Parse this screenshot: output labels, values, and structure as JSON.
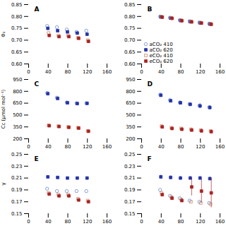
{
  "chart_data": [
    {
      "type": "scatter",
      "annotations": [
        "A"
      ],
      "ylabel": "Φ₂",
      "x": [
        40,
        60,
        80,
        100,
        120
      ],
      "series": [
        {
          "name": "aCO₂ 410",
          "color": "#6688cc",
          "marker": "circle_open",
          "values": [
            0.76,
            0.755,
            0.745,
            0.735,
            0.74
          ]
        },
        {
          "name": "aCO₂ 620",
          "color": "#2233aa",
          "marker": "square",
          "values": [
            0.75,
            0.74,
            0.735,
            0.73,
            0.725
          ]
        },
        {
          "name": "eCO₂ 410",
          "color": "#cc8866",
          "marker": "square_open",
          "values": [
            0.73,
            0.72,
            0.72,
            0.71,
            0.7
          ]
        },
        {
          "name": "eCO₂ 620",
          "color": "#aa2222",
          "marker": "square",
          "values": [
            0.72,
            0.715,
            0.715,
            0.708,
            0.695
          ]
        }
      ],
      "xlim": [
        0,
        160
      ],
      "xticks": [
        0,
        40,
        80,
        120,
        160
      ],
      "ylim": [
        0.6,
        0.85
      ],
      "yticks": [
        {
          "value": 0.6,
          "label": "0.60"
        },
        {
          "value": 0.65,
          "label": "0.65"
        },
        {
          "value": 0.7,
          "label": "0.70"
        },
        {
          "value": 0.75,
          "label": "0.75"
        },
        {
          "value": 0.8,
          "label": "0.80"
        },
        {
          "value": 0.85,
          "label": "0.85"
        }
      ],
      "grid": false
    },
    {
      "type": "scatter",
      "annotations": [
        "B"
      ],
      "x": [
        40,
        60,
        80,
        100,
        120,
        140
      ],
      "series": [
        {
          "name": "aCO₂ 410",
          "color": "#6688cc",
          "marker": "circle_open",
          "values": [
            0.8,
            0.795,
            0.785,
            0.78,
            0.775,
            0.77
          ]
        },
        {
          "name": "aCO₂ 620",
          "color": "#2233aa",
          "marker": "square",
          "values": [
            0.798,
            0.793,
            0.783,
            0.778,
            0.773,
            0.768
          ]
        },
        {
          "name": "eCO₂ 410",
          "color": "#cc8866",
          "marker": "square_open",
          "values": [
            0.799,
            0.794,
            0.784,
            0.779,
            0.774,
            0.769
          ]
        },
        {
          "name": "eCO₂ 620",
          "color": "#aa2222",
          "marker": "square",
          "values": [
            0.797,
            0.792,
            0.782,
            0.777,
            0.772,
            0.767
          ]
        }
      ],
      "xlim": [
        0,
        160
      ],
      "xticks": [
        0,
        40,
        80,
        120,
        160
      ],
      "ylim": [
        0.6,
        0.85
      ],
      "yticks": [
        {
          "value": 0.6,
          "label": "0.60"
        },
        {
          "value": 0.65,
          "label": "0.65"
        },
        {
          "value": 0.7,
          "label": "0.70"
        },
        {
          "value": 0.75,
          "label": "0.75"
        },
        {
          "value": 0.8,
          "label": "0.80"
        },
        {
          "value": 0.85,
          "label": "0.85"
        }
      ],
      "grid": false,
      "legend": "lower left"
    },
    {
      "type": "scatter",
      "annotations": [
        "C"
      ],
      "ylabel": "Cc (μmol mol⁻¹)",
      "x": [
        40,
        60,
        80,
        100,
        120
      ],
      "series": [
        {
          "name": "aCO₂ 410",
          "color": "#6688cc",
          "marker": "circle_open",
          "values": [
            780,
            720,
            660,
            650,
            650
          ]
        },
        {
          "name": "aCO₂ 620",
          "color": "#2233aa",
          "marker": "square",
          "values": [
            770,
            710,
            655,
            645,
            648
          ]
        },
        {
          "name": "eCO₂ 410",
          "color": "#cc8866",
          "marker": "square_open",
          "values": [
            370,
            360,
            350,
            340,
            300
          ]
        },
        {
          "name": "eCO₂ 620",
          "color": "#aa2222",
          "marker": "square",
          "values": [
            365,
            355,
            345,
            335,
            295
          ]
        }
      ],
      "xlim": [
        0,
        160
      ],
      "xticks": [
        0,
        40,
        80,
        120,
        160
      ],
      "ylim": [
        200,
        950
      ],
      "yticks": [
        200,
        350,
        500,
        650,
        800,
        950
      ],
      "grid": false
    },
    {
      "type": "scatter",
      "annotations": [
        "D"
      ],
      "x": [
        40,
        60,
        80,
        100,
        120,
        140
      ],
      "series": [
        {
          "name": "aCO₂ 410",
          "color": "#6688cc",
          "marker": "circle_open",
          "values": [
            760,
            690,
            660,
            640,
            620,
            600
          ]
        },
        {
          "name": "aCO₂ 620",
          "color": "#2233aa",
          "marker": "square",
          "values": [
            750,
            680,
            655,
            635,
            615,
            595
          ],
          "errors": [
            20,
            20,
            20,
            20,
            30,
            25
          ]
        },
        {
          "name": "eCO₂ 410",
          "color": "#cc8866",
          "marker": "square_open",
          "values": [
            360,
            340,
            330,
            320,
            310,
            300
          ]
        },
        {
          "name": "eCO₂ 620",
          "color": "#aa2222",
          "marker": "square",
          "values": [
            350,
            330,
            320,
            310,
            300,
            290
          ],
          "errors": [
            15,
            15,
            20,
            20,
            25,
            20
          ]
        }
      ],
      "xlim": [
        0,
        160
      ],
      "xticks": [
        0,
        40,
        80,
        120,
        160
      ],
      "ylim": [
        200,
        950
      ],
      "yticks": [
        200,
        350,
        500,
        650,
        800,
        950
      ],
      "grid": false
    },
    {
      "type": "scatter",
      "annotations": [
        "E"
      ],
      "ylabel": "γ",
      "x": [
        40,
        60,
        80,
        100,
        120
      ],
      "series": [
        {
          "name": "aCO₂ 410",
          "color": "#6688cc",
          "marker": "circle_open",
          "values": [
            0.192,
            0.188,
            0.188,
            0.188,
            0.188
          ]
        },
        {
          "name": "aCO₂ 620",
          "color": "#2233aa",
          "marker": "square",
          "values": [
            0.212,
            0.211,
            0.21,
            0.21,
            0.21
          ]
        },
        {
          "name": "eCO₂ 410",
          "color": "#cc8866",
          "marker": "square_open",
          "values": [
            0.185,
            0.182,
            0.182,
            0.175,
            0.172
          ]
        },
        {
          "name": "eCO₂ 620",
          "color": "#aa2222",
          "marker": "square",
          "values": [
            0.183,
            0.18,
            0.18,
            0.173,
            0.17
          ]
        }
      ],
      "xlim": [
        0,
        160
      ],
      "xticks": [
        0,
        40,
        80,
        120,
        160
      ],
      "ylim": [
        0.15,
        0.25
      ],
      "yticks": [
        0.15,
        0.17,
        0.19,
        0.21,
        0.23,
        0.25
      ],
      "grid": false
    },
    {
      "type": "scatter",
      "annotations": [
        "F"
      ],
      "x": [
        40,
        60,
        80,
        100,
        120,
        140
      ],
      "series": [
        {
          "name": "aCO₂ 410",
          "color": "#6688cc",
          "marker": "circle_open",
          "values": [
            0.19,
            0.18,
            0.176,
            0.172,
            0.17,
            0.168
          ]
        },
        {
          "name": "aCO₂ 620",
          "color": "#2233aa",
          "marker": "square",
          "values": [
            0.212,
            0.211,
            0.21,
            0.21,
            0.21,
            0.209
          ],
          "errors": [
            0.003,
            0.003,
            0.003,
            0.003,
            0.003,
            0.003
          ]
        },
        {
          "name": "eCO₂ 410",
          "color": "#cc8866",
          "marker": "square_open",
          "values": [
            0.185,
            0.178,
            0.174,
            0.17,
            0.168,
            0.166
          ]
        },
        {
          "name": "eCO₂ 620",
          "color": "#aa2222",
          "marker": "square",
          "values": [
            0.182,
            0.176,
            0.172,
            0.195,
            0.188,
            0.185
          ],
          "errors": [
            0.003,
            0.003,
            0.003,
            0.015,
            0.02,
            0.025
          ]
        }
      ],
      "xlim": [
        0,
        160
      ],
      "xticks": [
        0,
        40,
        80,
        120,
        160
      ],
      "ylim": [
        0.15,
        0.25
      ],
      "yticks": [
        0.15,
        0.17,
        0.19,
        0.21,
        0.23,
        0.25
      ],
      "grid": false
    }
  ]
}
